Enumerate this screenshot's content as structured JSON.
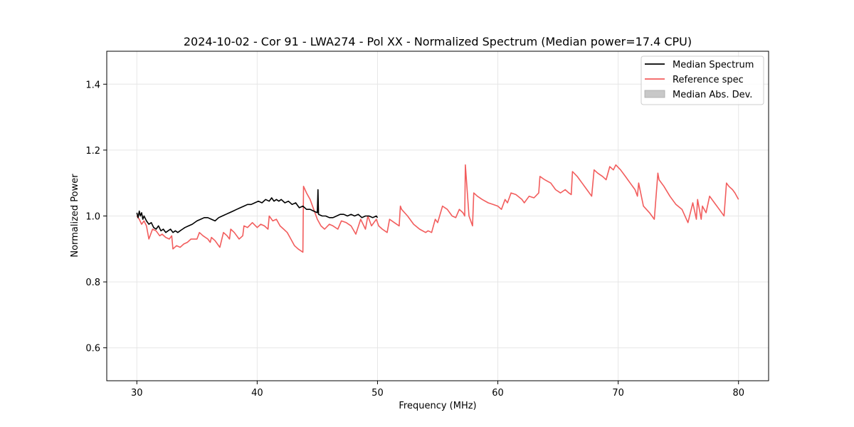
{
  "chart_data": {
    "type": "line",
    "title": "2024-10-02 - Cor 91 - LWA274 - Pol XX - Normalized Spectrum (Median power=17.4 CPU)",
    "xlabel": "Frequency (MHz)",
    "ylabel": "Normalized Power",
    "xlim": [
      27.5,
      82.5
    ],
    "ylim": [
      0.5,
      1.5
    ],
    "xticks": [
      30,
      40,
      50,
      60,
      70,
      80
    ],
    "xtick_labels": [
      "30",
      "40",
      "50",
      "60",
      "70",
      "80"
    ],
    "yticks": [
      0.6,
      0.8,
      1.0,
      1.2,
      1.4
    ],
    "ytick_labels": [
      "0.6",
      "0.8",
      "1.0",
      "1.2",
      "1.4"
    ],
    "grid": true,
    "legend_position": "top-right",
    "legend": [
      {
        "label": "Median Spectrum",
        "kind": "line",
        "color": "#000000"
      },
      {
        "label": "Reference spec",
        "kind": "line",
        "color": "#f25d5d"
      },
      {
        "label": "Median Abs. Dev.",
        "kind": "patch",
        "color": "#c8c8c8"
      }
    ],
    "series": [
      {
        "name": "Reference spec",
        "color": "#f25d5d",
        "x": [
          30.0,
          30.2,
          30.4,
          30.6,
          30.8,
          31.0,
          31.1,
          31.3,
          31.6,
          31.9,
          32.1,
          32.4,
          32.7,
          32.9,
          33.0,
          33.3,
          33.6,
          33.9,
          34.2,
          34.5,
          35.0,
          35.2,
          35.5,
          35.9,
          36.1,
          36.2,
          36.5,
          36.9,
          37.2,
          37.5,
          37.7,
          37.8,
          38.1,
          38.5,
          38.8,
          38.9,
          39.2,
          39.6,
          40.0,
          40.3,
          40.6,
          40.9,
          41.0,
          41.3,
          41.6,
          41.9,
          42.2,
          42.5,
          42.8,
          43.1,
          43.4,
          43.8,
          43.85,
          44.1,
          44.4,
          44.7,
          45.0,
          45.3,
          45.6,
          46.0,
          46.3,
          46.7,
          47.0,
          47.4,
          47.8,
          48.2,
          48.6,
          49.0,
          49.2,
          49.5,
          49.9,
          50.1,
          50.4,
          50.8,
          51.0,
          51.4,
          51.8,
          51.9,
          52.0,
          52.5,
          53.0,
          53.5,
          54.0,
          54.2,
          54.5,
          54.8,
          55.0,
          55.4,
          55.8,
          56.2,
          56.5,
          56.8,
          57.1,
          57.25,
          57.3,
          57.6,
          57.9,
          58.0,
          58.3,
          58.7,
          59.2,
          59.6,
          60.0,
          60.3,
          60.6,
          60.8,
          61.1,
          61.5,
          62.0,
          62.2,
          62.6,
          63.0,
          63.4,
          63.5,
          63.9,
          64.4,
          64.8,
          65.2,
          65.6,
          65.9,
          66.1,
          66.2,
          66.6,
          67.0,
          67.4,
          67.8,
          68.0,
          68.3,
          68.7,
          69.0,
          69.3,
          69.6,
          69.8,
          70.2,
          70.6,
          71.0,
          71.4,
          71.6,
          71.7,
          72.1,
          72.6,
          73.0,
          73.3,
          73.4,
          73.8,
          74.3,
          74.8,
          75.3,
          75.8,
          76.2,
          76.5,
          76.6,
          76.9,
          77.0,
          77.3,
          77.6,
          78.0,
          78.4,
          78.8,
          79.0,
          79.2,
          79.5,
          79.7,
          80.0
        ],
        "y": [
          1.0,
          0.99,
          0.975,
          0.985,
          0.97,
          0.93,
          0.94,
          0.96,
          0.955,
          0.94,
          0.945,
          0.935,
          0.93,
          0.94,
          0.9,
          0.91,
          0.905,
          0.915,
          0.92,
          0.93,
          0.93,
          0.95,
          0.94,
          0.93,
          0.92,
          0.935,
          0.925,
          0.905,
          0.95,
          0.94,
          0.93,
          0.96,
          0.95,
          0.93,
          0.94,
          0.97,
          0.965,
          0.98,
          0.965,
          0.975,
          0.97,
          0.96,
          1.0,
          0.985,
          0.99,
          0.97,
          0.96,
          0.95,
          0.93,
          0.91,
          0.9,
          0.89,
          1.09,
          1.07,
          1.05,
          1.02,
          0.99,
          0.97,
          0.96,
          0.975,
          0.97,
          0.96,
          0.985,
          0.98,
          0.97,
          0.945,
          0.99,
          0.96,
          1.0,
          0.97,
          0.99,
          0.97,
          0.96,
          0.95,
          0.99,
          0.98,
          0.97,
          1.03,
          1.02,
          1.0,
          0.975,
          0.96,
          0.95,
          0.955,
          0.95,
          0.99,
          0.98,
          1.03,
          1.02,
          1.0,
          0.995,
          1.02,
          1.01,
          1.0,
          1.155,
          1.0,
          0.97,
          1.07,
          1.06,
          1.05,
          1.04,
          1.035,
          1.03,
          1.02,
          1.05,
          1.04,
          1.07,
          1.065,
          1.05,
          1.04,
          1.06,
          1.055,
          1.07,
          1.12,
          1.11,
          1.1,
          1.08,
          1.07,
          1.08,
          1.07,
          1.065,
          1.135,
          1.12,
          1.1,
          1.08,
          1.06,
          1.14,
          1.13,
          1.12,
          1.11,
          1.15,
          1.14,
          1.155,
          1.14,
          1.12,
          1.1,
          1.08,
          1.06,
          1.1,
          1.03,
          1.01,
          0.99,
          1.13,
          1.11,
          1.09,
          1.06,
          1.035,
          1.02,
          0.98,
          1.04,
          0.99,
          1.05,
          0.99,
          1.03,
          1.01,
          1.06,
          1.04,
          1.02,
          1.0,
          1.1,
          1.09,
          1.08,
          1.07,
          1.05
        ]
      },
      {
        "name": "Median Spectrum",
        "color": "#000000",
        "x": [
          30.0,
          30.1,
          30.2,
          30.3,
          30.4,
          30.5,
          30.6,
          30.8,
          31.0,
          31.2,
          31.4,
          31.6,
          31.8,
          32.0,
          32.2,
          32.4,
          32.6,
          32.8,
          33.0,
          33.2,
          33.4,
          33.6,
          33.8,
          34.0,
          34.3,
          34.6,
          35.0,
          35.3,
          35.6,
          35.9,
          36.2,
          36.5,
          36.8,
          37.1,
          37.4,
          37.7,
          38.0,
          38.3,
          38.6,
          38.9,
          39.2,
          39.5,
          39.8,
          40.1,
          40.4,
          40.7,
          41.0,
          41.2,
          41.4,
          41.6,
          41.8,
          42.0,
          42.3,
          42.6,
          42.9,
          43.2,
          43.5,
          43.8,
          44.1,
          44.4,
          44.7,
          45.0,
          45.05,
          45.1,
          45.4,
          45.7,
          46.0,
          46.3,
          46.6,
          46.9,
          47.2,
          47.5,
          47.8,
          48.1,
          48.4,
          48.7,
          49.0,
          49.3,
          49.6,
          49.9,
          50.0
        ],
        "y": [
          1.01,
          0.995,
          1.015,
          1.0,
          1.01,
          0.99,
          1.0,
          0.985,
          0.975,
          0.98,
          0.965,
          0.96,
          0.97,
          0.955,
          0.96,
          0.95,
          0.955,
          0.96,
          0.95,
          0.955,
          0.95,
          0.955,
          0.96,
          0.965,
          0.97,
          0.975,
          0.985,
          0.99,
          0.995,
          0.995,
          0.99,
          0.985,
          0.995,
          1.0,
          1.005,
          1.01,
          1.015,
          1.02,
          1.025,
          1.03,
          1.035,
          1.035,
          1.04,
          1.045,
          1.04,
          1.05,
          1.045,
          1.055,
          1.045,
          1.05,
          1.045,
          1.05,
          1.04,
          1.045,
          1.035,
          1.04,
          1.025,
          1.03,
          1.02,
          1.02,
          1.015,
          1.01,
          1.08,
          1.005,
          1.0,
          1.0,
          0.995,
          0.995,
          1.0,
          1.005,
          1.005,
          1.0,
          1.005,
          1.0,
          1.005,
          0.995,
          1.0,
          1.0,
          0.995,
          1.0,
          0.995
        ]
      }
    ]
  }
}
